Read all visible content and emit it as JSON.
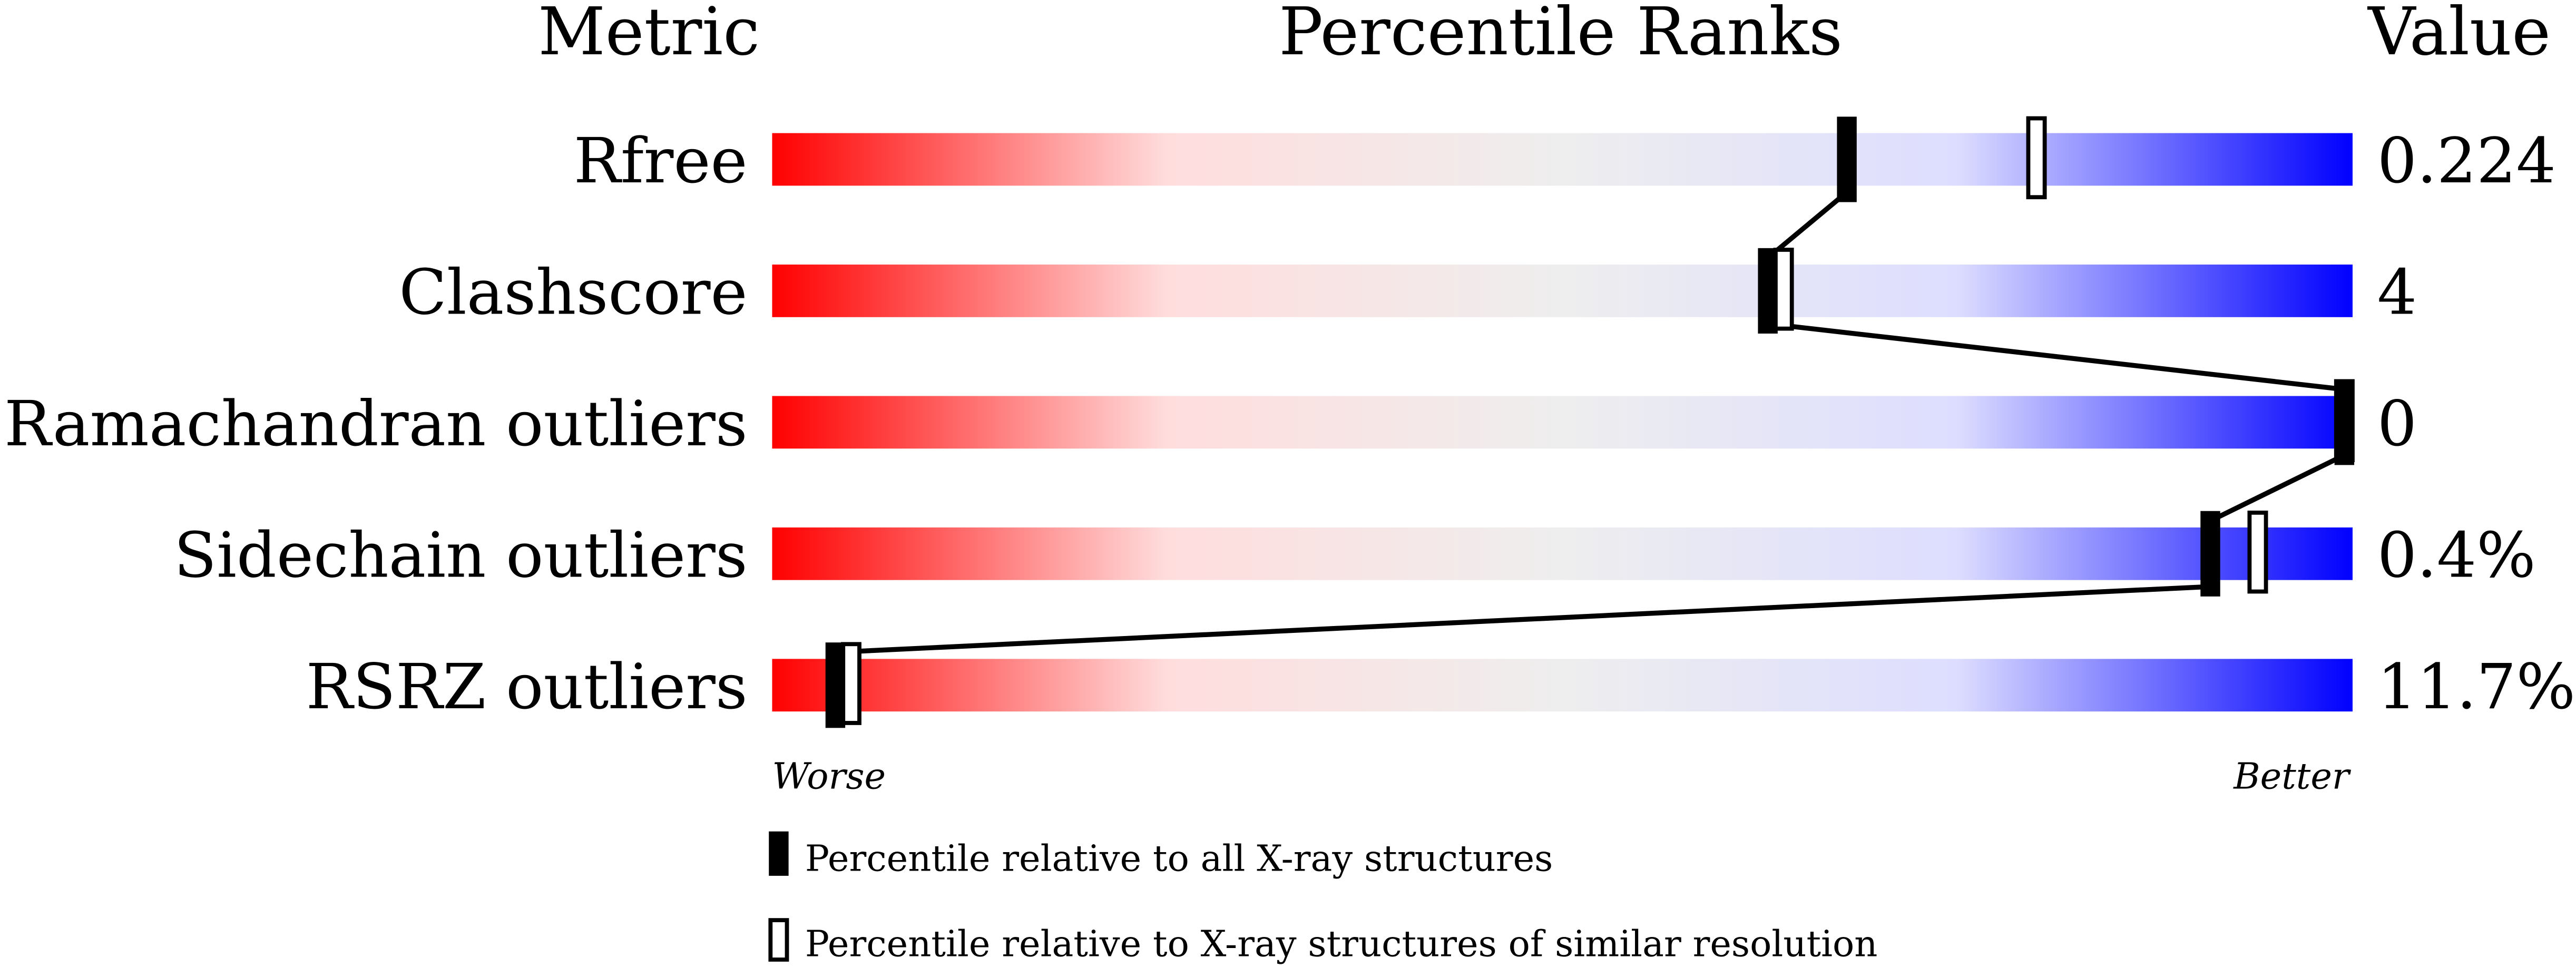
{
  "chart_data": {
    "type": "percentile-bar",
    "headers": {
      "metric": "Metric",
      "ranks": "Percentile Ranks",
      "value": "Value"
    },
    "xlim": [
      0,
      100
    ],
    "axis_labels": {
      "left": "Worse",
      "right": "Better"
    },
    "gradient_colors": [
      "#ff0000",
      "#ffdddd",
      "#eeeeee",
      "#ddddff",
      "#0000ff"
    ],
    "metrics": [
      {
        "name": "Rfree",
        "value": "0.224",
        "percentile_all": 68,
        "percentile_similar": 80
      },
      {
        "name": "Clashscore",
        "value": "4",
        "percentile_all": 63,
        "percentile_similar": 64
      },
      {
        "name": "Ramachandran outliers",
        "value": "0",
        "percentile_all": 100,
        "percentile_similar": 100
      },
      {
        "name": "Sidechain outliers",
        "value": "0.4%",
        "percentile_all": 91,
        "percentile_similar": 94
      },
      {
        "name": "RSRZ outliers",
        "value": "11.7%",
        "percentile_all": 4,
        "percentile_similar": 5
      }
    ],
    "legend": [
      {
        "marker": "filled",
        "label": "Percentile relative to all X-ray structures"
      },
      {
        "marker": "open",
        "label": "Percentile relative to X-ray structures of similar resolution"
      }
    ]
  }
}
